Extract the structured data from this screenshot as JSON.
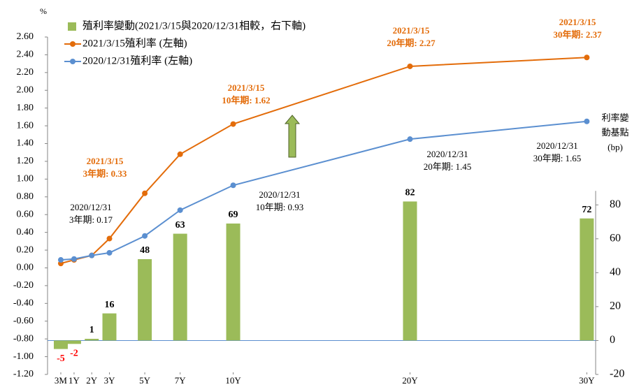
{
  "chart_data": {
    "type": "line_bar_combo",
    "left_unit": "%",
    "right_axis_title": [
      "利率變",
      "動基點",
      "(bp)"
    ],
    "xlim": [
      -0.5,
      30.5
    ],
    "xticks": [
      {
        "value": 0.25,
        "label": "3M"
      },
      {
        "value": 1,
        "label": "1Y"
      },
      {
        "value": 2,
        "label": "2Y"
      },
      {
        "value": 3,
        "label": "3Y"
      },
      {
        "value": 5,
        "label": "5Y"
      },
      {
        "value": 7,
        "label": "7Y"
      },
      {
        "value": 10,
        "label": "10Y"
      },
      {
        "value": 20,
        "label": "20Y"
      },
      {
        "value": 30,
        "label": "30Y"
      }
    ],
    "x": [
      0.25,
      1,
      2,
      3,
      5,
      7,
      10,
      20,
      30
    ],
    "ylim": [
      -1.2,
      2.6
    ],
    "yticks": [
      {
        "value": 2.6,
        "label": "2.60"
      },
      {
        "value": 2.4,
        "label": "2.40"
      },
      {
        "value": 2.2,
        "label": "2.20"
      },
      {
        "value": 2.0,
        "label": "2.00"
      },
      {
        "value": 1.8,
        "label": "1.80"
      },
      {
        "value": 1.6,
        "label": "1.60"
      },
      {
        "value": 1.4,
        "label": "1.40"
      },
      {
        "value": 1.2,
        "label": "1.20"
      },
      {
        "value": 1.0,
        "label": "1.00"
      },
      {
        "value": 0.8,
        "label": "0.80"
      },
      {
        "value": 0.6,
        "label": "0.60"
      },
      {
        "value": 0.4,
        "label": "0.40"
      },
      {
        "value": 0.2,
        "label": "0.20"
      },
      {
        "value": 0,
        "label": "0.00"
      },
      {
        "value": -0.2,
        "label": "-0.20"
      },
      {
        "value": -0.4,
        "label": "-0.40"
      },
      {
        "value": -0.6,
        "label": "-0.60"
      },
      {
        "value": -0.8,
        "label": "-0.80"
      },
      {
        "value": -1.0,
        "label": "-1.00"
      },
      {
        "value": -1.2,
        "label": "-1.20"
      }
    ],
    "y2lim": [
      -20,
      179
    ],
    "y2ticks": [
      80,
      60,
      40,
      20,
      0,
      -20
    ],
    "series": [
      {
        "name": "殖利率變動(2021/3/15與2020/12/31相較，右下軸)",
        "kind": "bar",
        "axis": "y2",
        "color": "#9bbb59",
        "values": [
          -5,
          -2,
          1,
          16,
          48,
          63,
          69,
          82,
          72
        ]
      },
      {
        "name": "2021/3/15殖利率 (左軸)",
        "kind": "line",
        "color": "#e36c0a",
        "values": [
          0.05,
          0.09,
          0.14,
          0.33,
          0.84,
          1.28,
          1.62,
          2.27,
          2.37
        ]
      },
      {
        "name": "2020/12/31殖利率 (左軸)",
        "kind": "line",
        "color": "#5b8fd0",
        "values": [
          0.09,
          0.1,
          0.14,
          0.17,
          0.36,
          0.65,
          0.93,
          1.45,
          1.65
        ]
      }
    ],
    "annotations": [
      {
        "lines": [
          "2021/3/15",
          "3年期: 0.33"
        ],
        "color": "#e36c0a"
      },
      {
        "lines": [
          "2020/12/31",
          "3年期: 0.17"
        ],
        "color": "#000000"
      },
      {
        "lines": [
          "2021/3/15",
          "10年期: 1.62"
        ],
        "color": "#e36c0a"
      },
      {
        "lines": [
          "2020/12/31",
          "10年期: 0.93"
        ],
        "color": "#000000"
      },
      {
        "lines": [
          "2021/3/15",
          "20年期: 2.27"
        ],
        "color": "#e36c0a"
      },
      {
        "lines": [
          "2020/12/31",
          "20年期: 1.45"
        ],
        "color": "#000000"
      },
      {
        "lines": [
          "2021/3/15",
          "30年期: 2.37"
        ],
        "color": "#e36c0a"
      },
      {
        "lines": [
          "2020/12/31",
          "30年期: 1.65"
        ],
        "color": "#000000"
      }
    ]
  }
}
